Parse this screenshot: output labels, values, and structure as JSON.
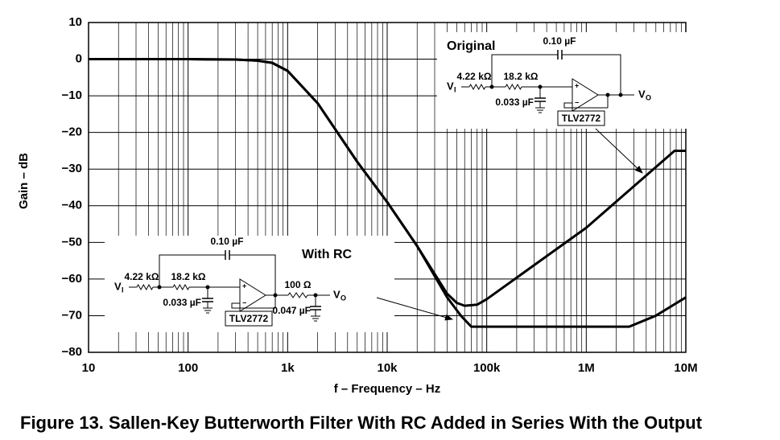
{
  "chart_data": {
    "type": "line",
    "caption": "Figure 13.  Sallen-Key Butterworth Filter With RC Added in Series With the Output",
    "x_label": "f – Frequency – Hz",
    "y_label": "Gain – dB",
    "xscale": "log",
    "grid": true,
    "minor_grid": true,
    "xlim": [
      10,
      10000000
    ],
    "ylim": [
      -80,
      10
    ],
    "xticks": [
      10,
      100,
      {
        "value": 1000,
        "label": "1k"
      },
      {
        "value": 10000,
        "label": "10k"
      },
      {
        "value": 100000,
        "label": "100k"
      },
      {
        "value": 1000000,
        "label": "1M"
      },
      {
        "value": 10000000,
        "label": "10M"
      }
    ],
    "yticks": [
      {
        "value": -80,
        "label": "−80"
      },
      {
        "value": -70,
        "label": "−70"
      },
      {
        "value": -60,
        "label": "−60"
      },
      {
        "value": -50,
        "label": "−50"
      },
      {
        "value": -40,
        "label": "−40"
      },
      {
        "value": -30,
        "label": "−30"
      },
      {
        "value": -20,
        "label": "−20"
      },
      {
        "value": -10,
        "label": "−10"
      },
      0,
      10
    ],
    "series": [
      {
        "name": "Original",
        "color": "#000000",
        "x": [
          10,
          100,
          300,
          500,
          700,
          1000,
          2000,
          5000,
          10000,
          20000,
          40000,
          50000,
          60000,
          80000,
          100000,
          1000000,
          7700000,
          10000000
        ],
        "values": [
          0,
          0,
          -0.1,
          -0.4,
          -1,
          -3.2,
          -12,
          -28,
          -39,
          -51,
          -64,
          -66.5,
          -67.3,
          -67,
          -65.5,
          -46,
          -25,
          -25
        ],
        "circuit": {
          "input": "V",
          "input_sub": "I",
          "output": "V",
          "output_sub": "O",
          "feedback_cap": "0.10 µF",
          "r1": "4.22 kΩ",
          "r2": "18.2 kΩ",
          "c1": "0.033 µF",
          "opamp": "TLV2772"
        }
      },
      {
        "name": "With RC",
        "color": "#000000",
        "x": [
          10,
          100,
          300,
          500,
          700,
          1000,
          2000,
          5000,
          10000,
          20000,
          40000,
          55000,
          70000,
          2700000,
          5000000,
          10000000
        ],
        "values": [
          0,
          0,
          -0.1,
          -0.4,
          -1,
          -3.2,
          -12,
          -28,
          -39,
          -51,
          -65,
          -70,
          -73,
          -73,
          -70,
          -65
        ],
        "circuit": {
          "input": "V",
          "input_sub": "I",
          "output": "V",
          "output_sub": "O",
          "feedback_cap": "0.10 µF",
          "r1": "4.22 kΩ",
          "r2": "18.2 kΩ",
          "c1": "0.033 µF",
          "opamp": "TLV2772",
          "r3": "100 Ω",
          "c2": "0.047 µF"
        }
      }
    ]
  }
}
